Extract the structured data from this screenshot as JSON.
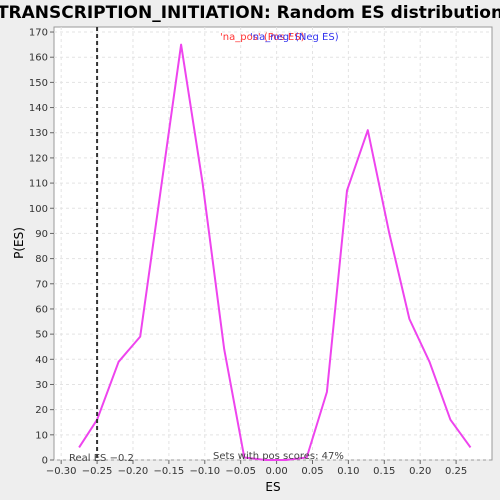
{
  "chart_data": {
    "type": "line",
    "title": "TRANSCRIPTION_INITIATION: Random ES distribution",
    "xlabel": "ES",
    "ylabel": "P(ES)",
    "xlim": [
      -0.31,
      0.3
    ],
    "ylim": [
      0,
      172
    ],
    "x_ticks": [
      -0.3,
      -0.25,
      -0.2,
      -0.15,
      -0.1,
      -0.05,
      0.0,
      0.05,
      0.1,
      0.15,
      0.2,
      0.25
    ],
    "x_tick_labels": [
      "−0.30",
      "−0.25",
      "−0.20",
      "−0.15",
      "−0.10",
      "−0.05",
      "0.00",
      "0.05",
      "0.10",
      "0.15",
      "0.20",
      "0.25"
    ],
    "y_ticks": [
      0,
      10,
      20,
      30,
      40,
      50,
      60,
      70,
      80,
      90,
      100,
      110,
      120,
      130,
      140,
      150,
      160,
      170
    ],
    "y_tick_labels": [
      "0",
      "10",
      "20",
      "30",
      "40",
      "50",
      "60",
      "70",
      "80",
      "90",
      "100",
      "110",
      "120",
      "130",
      "140",
      "150",
      "160",
      "170"
    ],
    "grid": true,
    "series": [
      {
        "color": "#ee44ee",
        "x": [
          -0.275,
          -0.25,
          -0.22,
          -0.19,
          -0.133,
          -0.103,
          -0.073,
          -0.045,
          -0.015,
          0.013,
          0.042,
          0.07,
          0.098,
          0.127,
          0.157,
          0.185,
          0.213,
          0.242,
          0.27
        ],
        "y": [
          5,
          16,
          39,
          49,
          165,
          110,
          44,
          1,
          0,
          0,
          1,
          27,
          107,
          131,
          90,
          56,
          39,
          16,
          5
        ]
      }
    ],
    "reference_line": {
      "x": -0.25,
      "style": "dashed"
    },
    "legend": {
      "position": "top-center",
      "entries": [
        {
          "text": "'na_pos' (Pos ES)",
          "color": "#ff3333"
        },
        {
          "text": "'na_neg' (Neg ES)",
          "color": "#3333ee"
        }
      ]
    },
    "annotations": {
      "real_es": "Real ES −0.2",
      "sets_with_pos": "Sets with pos scores: 47%"
    }
  }
}
